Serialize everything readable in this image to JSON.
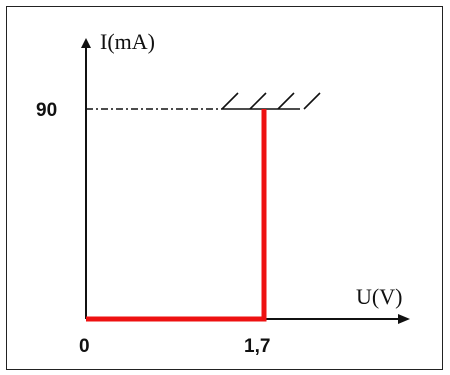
{
  "chart_data": {
    "type": "line",
    "ylabel": "I(mA)",
    "xlabel": "U(V)",
    "x_ticks": [
      "0",
      "1,7"
    ],
    "y_ticks": [
      "90"
    ],
    "xlim": [
      0,
      2.3
    ],
    "ylim": [
      0,
      110
    ],
    "series": [
      {
        "color": "#ee1111",
        "points": [
          [
            0,
            0
          ],
          [
            1.7,
            0
          ],
          [
            1.7,
            90
          ]
        ]
      }
    ],
    "limit_line": {
      "y": 90
    },
    "grid": false,
    "legend": "none"
  },
  "colors": {
    "curve": "#ee1111",
    "axes": "#111111"
  }
}
